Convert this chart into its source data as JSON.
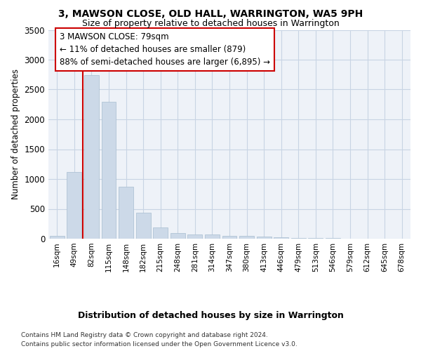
{
  "title1": "3, MAWSON CLOSE, OLD HALL, WARRINGTON, WA5 9PH",
  "title2": "Size of property relative to detached houses in Warrington",
  "xlabel": "Distribution of detached houses by size in Warrington",
  "ylabel": "Number of detached properties",
  "bar_color": "#ccd9e8",
  "bar_edge_color": "#a8bdd0",
  "annotation_line_color": "#cc0000",
  "annotation_box_color": "#cc0000",
  "annotation_line1": "3 MAWSON CLOSE: 79sqm",
  "annotation_line2": "← 11% of detached houses are smaller (879)",
  "annotation_line3": "88% of semi-detached houses are larger (6,895) →",
  "footer1": "Contains HM Land Registry data © Crown copyright and database right 2024.",
  "footer2": "Contains public sector information licensed under the Open Government Licence v3.0.",
  "categories": [
    "16sqm",
    "49sqm",
    "82sqm",
    "115sqm",
    "148sqm",
    "182sqm",
    "215sqm",
    "248sqm",
    "281sqm",
    "314sqm",
    "347sqm",
    "380sqm",
    "413sqm",
    "446sqm",
    "479sqm",
    "513sqm",
    "546sqm",
    "579sqm",
    "612sqm",
    "645sqm",
    "678sqm"
  ],
  "values": [
    50,
    1120,
    2740,
    2300,
    875,
    430,
    185,
    100,
    75,
    70,
    45,
    45,
    30,
    18,
    12,
    8,
    6,
    4,
    3,
    2,
    2
  ],
  "ylim": [
    0,
    3500
  ],
  "yticks": [
    0,
    500,
    1000,
    1500,
    2000,
    2500,
    3000,
    3500
  ],
  "grid_color": "#c8d4e4",
  "background_color": "#eef2f8",
  "vline_color": "#cc0000"
}
